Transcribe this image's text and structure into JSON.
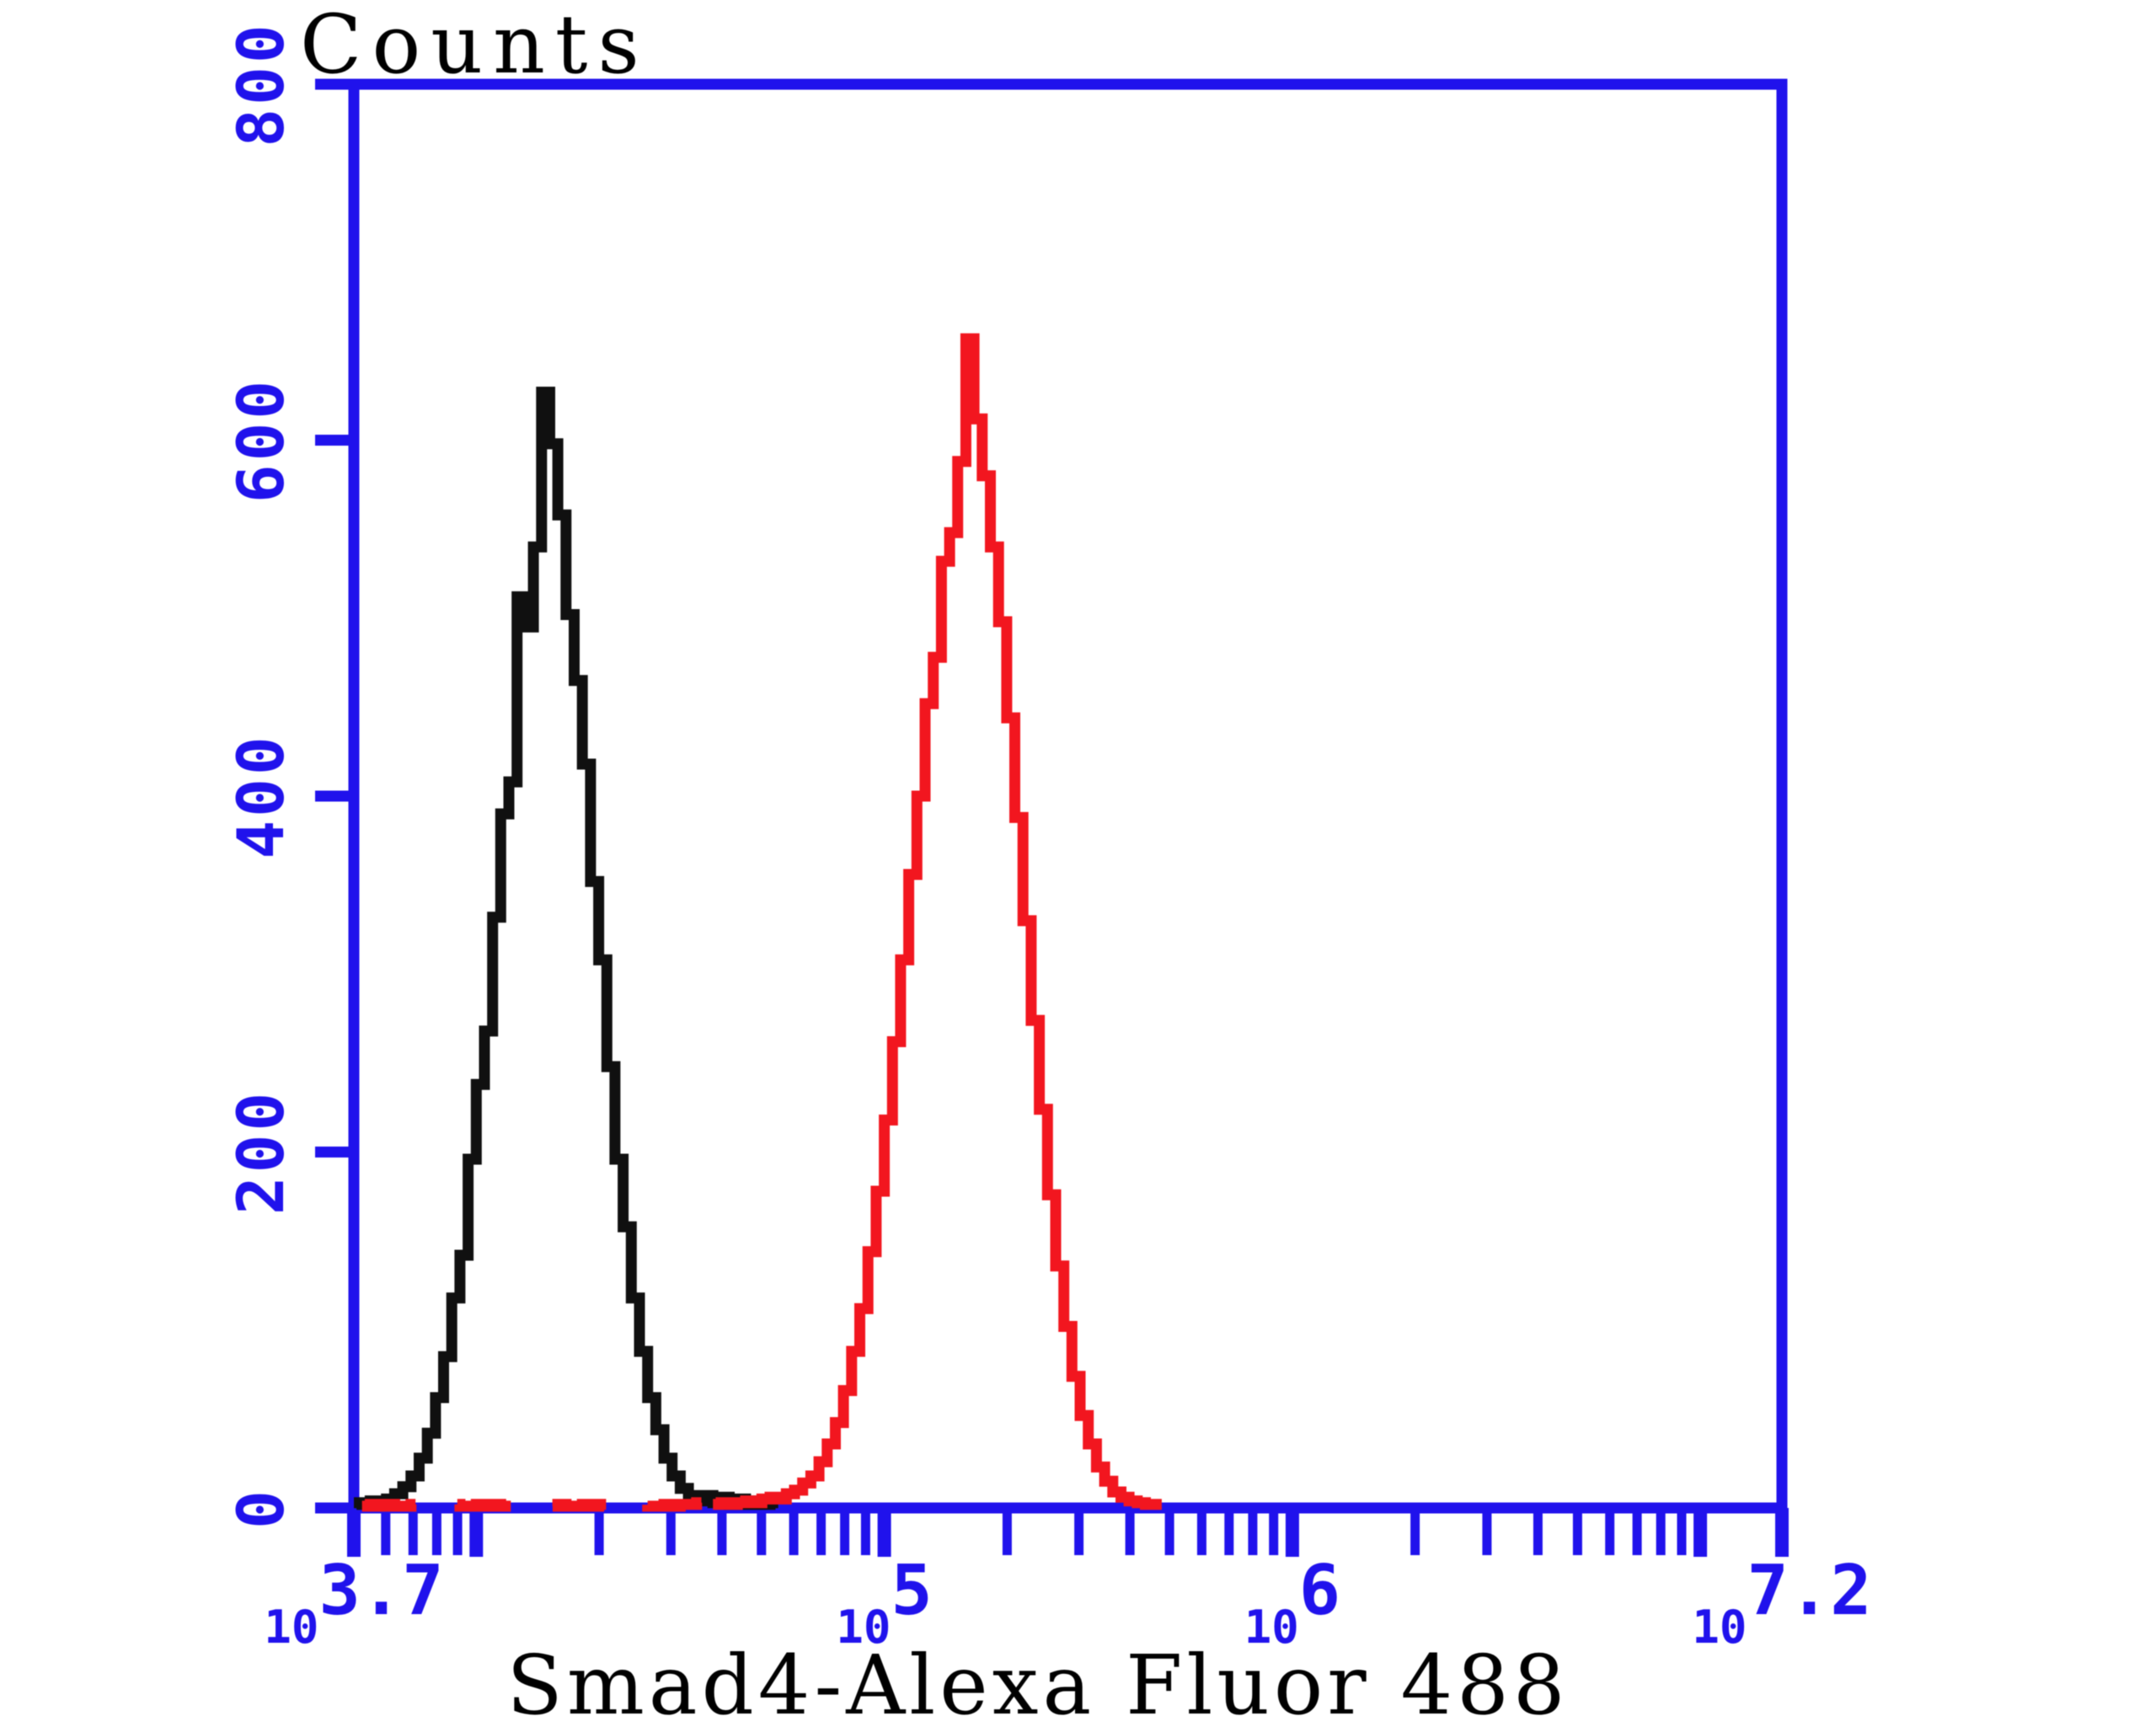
{
  "chart": {
    "y_axis": {
      "title": "Counts",
      "min": 0,
      "max": 800,
      "tick_values": [
        0,
        200,
        400,
        600,
        800
      ]
    },
    "x_axis": {
      "title": "Smad4-Alexa Fluor 488",
      "scale": "log10",
      "log_min": 3.7,
      "log_max": 7.2,
      "labels": [
        {
          "mantissa": "10",
          "exponent": "3.7",
          "log": 3.7
        },
        {
          "mantissa": "10",
          "exponent": "5",
          "log": 5.0
        },
        {
          "mantissa": "10",
          "exponent": "6",
          "log": 6.0
        },
        {
          "mantissa": "10",
          "exponent": "7.2",
          "log": 7.2
        }
      ]
    },
    "colors": {
      "axis_blue": "#2012ec",
      "tick_label_blue": "#2012ec",
      "title_black": "#0b0b0b",
      "control_black": "#101010",
      "sample_red": "#f2161f",
      "background": "#ffffff"
    }
  },
  "chart_data": {
    "type": "line",
    "description": "Flow cytometry overlay histogram: unlabelled control (black) and Smad4-Alexa Fluor 488 stained cells (red)",
    "x_scale": "log10",
    "xlabel": "Smad4-Alexa Fluor 488",
    "ylabel": "Counts",
    "xlim_log": [
      3.7,
      7.2
    ],
    "ylim": [
      0,
      800
    ],
    "grid": false,
    "legend": "none",
    "layout": {
      "plot_left": 420,
      "plot_top": 100,
      "plot_right": 2115,
      "plot_bottom": 1790
    },
    "peaks": [
      {
        "series": "control-black",
        "log_x": 4.16,
        "count": 627
      },
      {
        "series": "sample-red",
        "log_x": 5.2,
        "count": 657
      }
    ],
    "series": [
      {
        "name": "control-black",
        "color": "#101010",
        "bin_log_start": 3.7,
        "bin_log_step": 0.02,
        "counts": [
          3,
          2,
          4,
          3,
          5,
          8,
          12,
          18,
          28,
          42,
          62,
          85,
          118,
          142,
          196,
          238,
          268,
          332,
          390,
          408,
          512,
          495,
          540,
          627,
          598,
          558,
          502,
          465,
          418,
          352,
          308,
          248,
          196,
          158,
          118,
          88,
          62,
          44,
          28,
          18,
          11,
          7,
          4,
          7,
          3,
          6,
          2,
          5,
          2,
          4,
          2,
          3
        ]
      },
      {
        "name": "sample-red",
        "color": "#f2161f",
        "bin_log_start": 3.72,
        "bin_log_step": 0.02,
        "baseline_dash_end_bin": 43,
        "counts": [
          1,
          2,
          1,
          2,
          1,
          1,
          2,
          1,
          2,
          1,
          1,
          2,
          1,
          1,
          2,
          1,
          2,
          1,
          1,
          2,
          1,
          2,
          1,
          1,
          2,
          1,
          1,
          2,
          1,
          2,
          1,
          1,
          2,
          1,
          2,
          1,
          1,
          2,
          1,
          2,
          2,
          3,
          2,
          2,
          3,
          2,
          3,
          4,
          3,
          5,
          6,
          5,
          8,
          10,
          14,
          18,
          26,
          36,
          48,
          66,
          88,
          112,
          144,
          178,
          218,
          262,
          308,
          356,
          400,
          452,
          478,
          532,
          548,
          588,
          657,
          612,
          580,
          540,
          498,
          444,
          388,
          330,
          274,
          224,
          176,
          136,
          102,
          74,
          52,
          36,
          23,
          15,
          9,
          6,
          4,
          3,
          2,
          2
        ]
      }
    ]
  }
}
